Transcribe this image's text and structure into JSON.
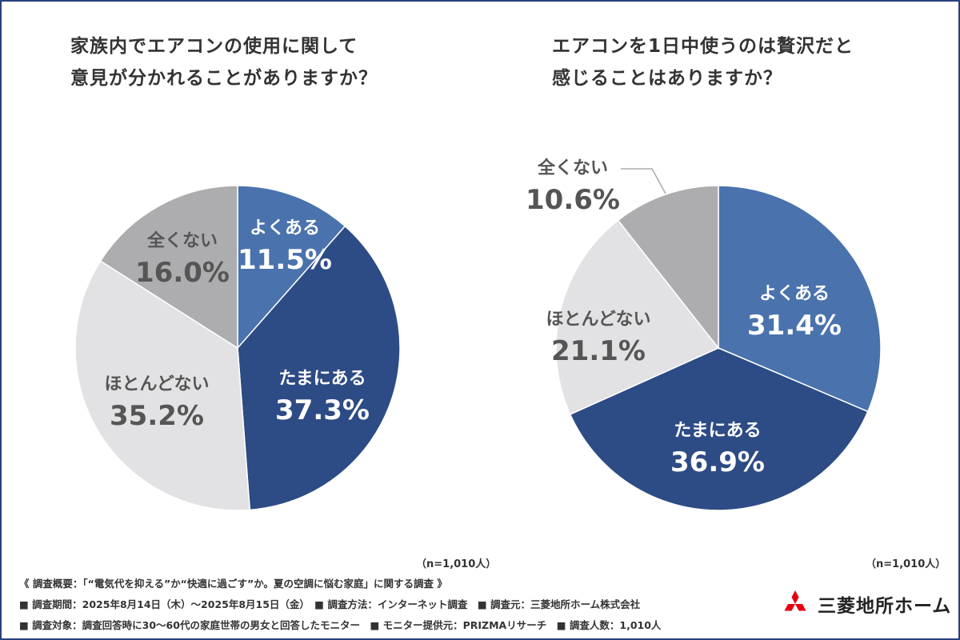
{
  "titles": {
    "left_line1": "家族内でエアコンの使用に関して",
    "left_line2": "意見が分かれることがありますか？",
    "right_line1": "エアコンを1日中使うのは贅沢だと",
    "right_line2": "感じることはありますか？"
  },
  "chart_data": [
    {
      "type": "pie",
      "title": "家族内でエアコンの使用に関して意見が分かれることがありますか？",
      "categories": [
        "よくある",
        "たまにある",
        "ほとんどない",
        "全くない"
      ],
      "values": [
        11.5,
        37.3,
        35.2,
        16.0
      ],
      "value_labels": [
        "11.5%",
        "37.3%",
        "35.2%",
        "16.0%"
      ],
      "colors": [
        "#4a72ad",
        "#2d4b85",
        "#e2e2e4",
        "#adadb0"
      ],
      "note": "（n=1,010人）"
    },
    {
      "type": "pie",
      "title": "エアコンを1日中使うのは贅沢だと感じることはありますか？",
      "categories": [
        "よくある",
        "たまにある",
        "ほとんどない",
        "全くない"
      ],
      "values": [
        31.4,
        36.9,
        21.1,
        10.6
      ],
      "value_labels": [
        "31.4%",
        "36.9%",
        "21.1%",
        "10.6%"
      ],
      "colors": [
        "#4a72ad",
        "#2d4b85",
        "#e2e2e4",
        "#adadb0"
      ],
      "note": "（n=1,010人）"
    }
  ],
  "footer": {
    "line1": "《 調査概要：「“電気代を抑える”か“快適に過ごす”か。夏の空調に悩む家庭」に関する調査 》",
    "line2": "■ 調査期間：2025年8月14日（木）〜2025年8月15日（金）　■ 調査方法：インターネット調査　■ 調査元：三菱地所ホーム株式会社",
    "line3": "■ 調査対象：調査回答時に30〜60代の家庭世帯の男女と回答したモニター　■ モニター提供元：PRIZMAリサーチ　■ 調査人数：1,010人"
  },
  "logo": {
    "text": "三菱地所ホーム",
    "mark_color": "#e60012",
    "icon": "mitsubishi-three-diamonds-icon"
  }
}
